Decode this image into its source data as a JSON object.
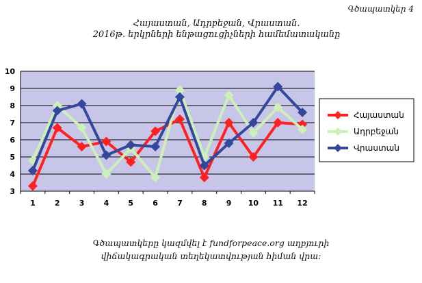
{
  "figure_label": "Գծապատկեր 4",
  "title_line1": "Հայաստան, Ադրբեջան, Վրաստան.",
  "title_line2": "2016թ. երկրների ենթացուցիչների համեմատականը",
  "caption_line1": "Գծապատկերը կազմվել է fundforpeace.org աղբյուրի",
  "caption_line2": "վիճակագրական տեղեկատվության հիման վրա:",
  "colors": {
    "plot_bg": "#c8c6e8",
    "armenia": "#ff2020",
    "azerbaijan": "#ccf0b8",
    "georgia": "#33479c"
  },
  "chart_data": {
    "type": "line",
    "x": [
      "1",
      "2",
      "3",
      "4",
      "5",
      "6",
      "7",
      "8",
      "9",
      "10",
      "11",
      "12"
    ],
    "ylim": [
      3,
      10
    ],
    "yticks": [
      "3",
      "4",
      "5",
      "6",
      "7",
      "8",
      "9",
      "10"
    ],
    "grid": true,
    "legend_position": "right",
    "series": [
      {
        "name": "Հայաստան",
        "color": "#ff2020",
        "values": [
          3.3,
          6.7,
          5.6,
          5.9,
          4.7,
          6.5,
          7.2,
          3.8,
          7.0,
          5.0,
          7.0,
          6.9
        ]
      },
      {
        "name": "Ադրբեջան",
        "color": "#ccf0b8",
        "values": [
          4.8,
          8.0,
          6.7,
          4.0,
          5.5,
          3.8,
          8.9,
          5.0,
          8.6,
          6.4,
          7.9,
          6.6
        ]
      },
      {
        "name": "Վրաստան",
        "color": "#33479c",
        "values": [
          4.2,
          7.7,
          8.1,
          5.1,
          5.7,
          5.6,
          8.5,
          4.5,
          5.8,
          7.0,
          9.1,
          7.6
        ]
      }
    ]
  }
}
